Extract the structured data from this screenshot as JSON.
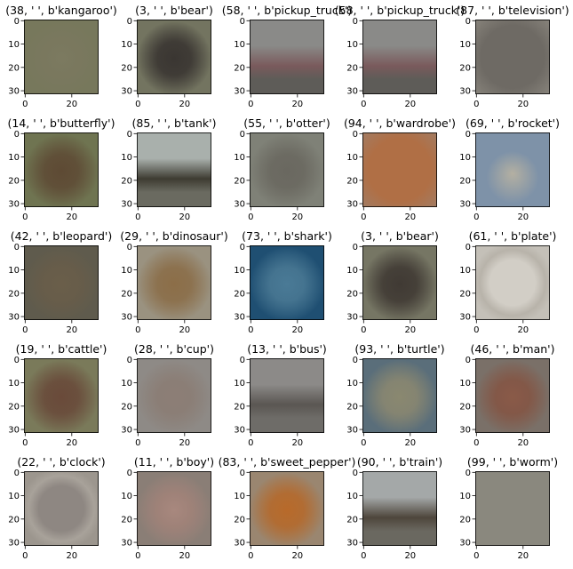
{
  "chart_data": {
    "type": "heatmap",
    "layout": {
      "rows": 5,
      "cols": 5
    },
    "image_size": [
      32,
      32
    ],
    "x_ticks": [
      0,
      20
    ],
    "y_ticks": [
      0,
      10,
      20,
      30
    ],
    "panels": [
      {
        "title": "(38, ' ', b'kangaroo')",
        "colors": [
          "#77785c",
          "#7c7a60",
          "#6e6e55"
        ],
        "shape": "blob"
      },
      {
        "title": "(3, ' ', b'bear')",
        "colors": [
          "#737460",
          "#3a3632",
          "#5f5c4f"
        ],
        "shape": "blob"
      },
      {
        "title": "(58, ' ', b'pickup_truck')",
        "colors": [
          "#8a8a88",
          "#7a5a5c",
          "#5e5c58"
        ],
        "shape": "band"
      },
      {
        "title": "(58, ' ', b'pickup_truck')",
        "colors": [
          "#8a8a88",
          "#7a5a5c",
          "#5e5c58"
        ],
        "shape": "band"
      },
      {
        "title": "(87, ' ', b'television')",
        "colors": [
          "#87837b",
          "#6e6a64",
          "#77736d"
        ],
        "shape": "box"
      },
      {
        "title": "(14, ' ', b'butterfly')",
        "colors": [
          "#6f7451",
          "#5e4a34",
          "#6c7050"
        ],
        "shape": "blob"
      },
      {
        "title": "(85, ' ', b'tank')",
        "colors": [
          "#a9b0ac",
          "#3e3c32",
          "#6a6a60"
        ],
        "shape": "band"
      },
      {
        "title": "(55, ' ', b'otter')",
        "colors": [
          "#7f8177",
          "#6a6860",
          "#7a7c70"
        ],
        "shape": "blob"
      },
      {
        "title": "(94, ' ', b'wardrobe')",
        "colors": [
          "#a27c63",
          "#b06f45",
          "#9a7257"
        ],
        "shape": "box"
      },
      {
        "title": "(69, ' ', b'rocket')",
        "colors": [
          "#7e92a8",
          "#b4b0a2",
          "#8a8c86"
        ],
        "shape": "rocket"
      },
      {
        "title": "(42, ' ', b'leopard')",
        "colors": [
          "#5f5b4d",
          "#6a5e4a",
          "#5a5648"
        ],
        "shape": "blob"
      },
      {
        "title": "(29, ' ', b'dinosaur')",
        "colors": [
          "#9a9280",
          "#8c6e48",
          "#8e8676"
        ],
        "shape": "blob"
      },
      {
        "title": "(73, ' ', b'shark')",
        "colors": [
          "#1f4f72",
          "#4a7a96",
          "#26506c"
        ],
        "shape": "blob"
      },
      {
        "title": "(3, ' ', b'bear')",
        "colors": [
          "#767664",
          "#403a34",
          "#666354"
        ],
        "shape": "blob"
      },
      {
        "title": "(61, ' ', b'plate')",
        "colors": [
          "#b8b3aa",
          "#d2cec6",
          "#c4c0b8"
        ],
        "shape": "ring"
      },
      {
        "title": "(19, ' ', b'cattle')",
        "colors": [
          "#7a7a5a",
          "#6a4a3a",
          "#6f7052"
        ],
        "shape": "blob"
      },
      {
        "title": "(28, ' ', b'cup')",
        "colors": [
          "#8e8a86",
          "#8c7e76",
          "#858078"
        ],
        "shape": "blob"
      },
      {
        "title": "(13, ' ', b'bus')",
        "colors": [
          "#8c8a88",
          "#5a5652",
          "#6e6c68"
        ],
        "shape": "band"
      },
      {
        "title": "(93, ' ', b'turtle')",
        "colors": [
          "#5a6e7a",
          "#8a8870",
          "#66707a"
        ],
        "shape": "blob"
      },
      {
        "title": "(46, ' ', b'man')",
        "colors": [
          "#7a7068",
          "#8a5a48",
          "#5a4a44"
        ],
        "shape": "blob"
      },
      {
        "title": "(22, ' ', b'clock')",
        "colors": [
          "#a8a29a",
          "#8e8782",
          "#9c968e"
        ],
        "shape": "ring"
      },
      {
        "title": "(11, ' ', b'boy')",
        "colors": [
          "#8a7e76",
          "#a8887e",
          "#6a5e58"
        ],
        "shape": "blob"
      },
      {
        "title": "(83, ' ', b'sweet_pepper')",
        "colors": [
          "#9a8670",
          "#b86a2a",
          "#8a7a68"
        ],
        "shape": "blob"
      },
      {
        "title": "(90, ' ', b'train')",
        "colors": [
          "#a4a8a8",
          "#4e463c",
          "#6a6860"
        ],
        "shape": "band"
      },
      {
        "title": "(99, ' ', b'worm')",
        "colors": [
          "#8a887e",
          "#8e8a80",
          "#86847a"
        ],
        "shape": "flat"
      }
    ]
  }
}
